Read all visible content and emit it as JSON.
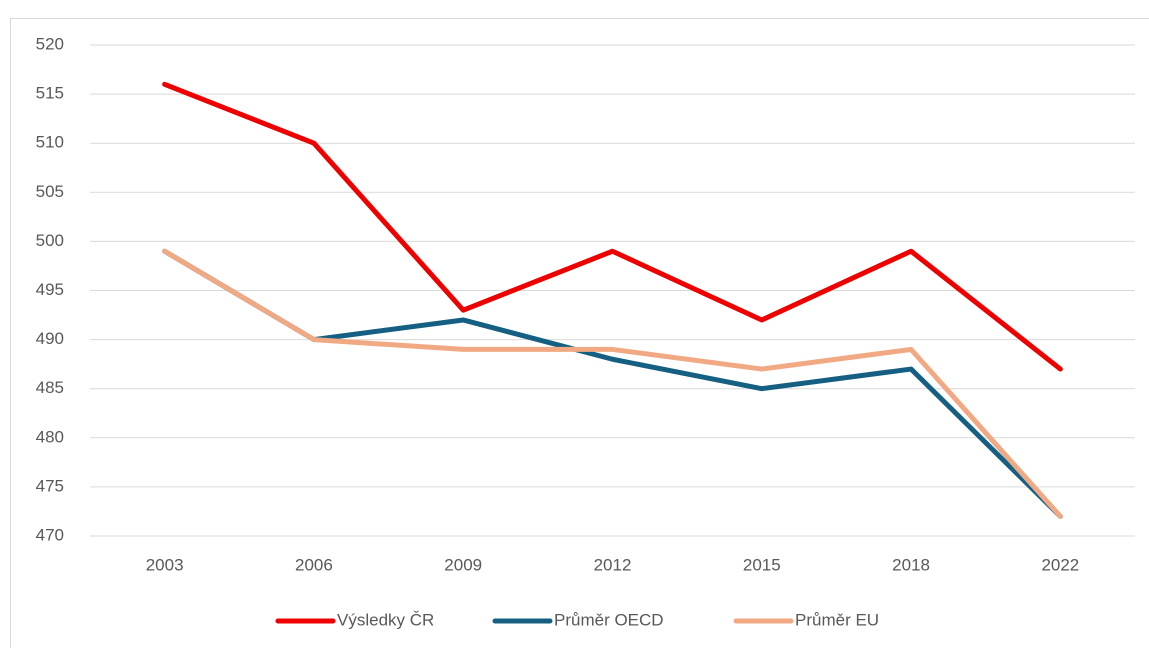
{
  "chart_data": {
    "type": "line",
    "categories": [
      "2003",
      "2006",
      "2009",
      "2012",
      "2015",
      "2018",
      "2022"
    ],
    "series": [
      {
        "name": "Výsledky ČR",
        "color": "#ee0000",
        "values": [
          516,
          510,
          493,
          499,
          492,
          499,
          487
        ]
      },
      {
        "name": "Průměr OECD",
        "color": "#156082",
        "values": [
          499,
          490,
          492,
          488,
          485,
          487,
          472
        ]
      },
      {
        "name": "Průměr EU",
        "color": "#f1a983",
        "values": [
          499,
          490,
          489,
          489,
          487,
          489,
          472
        ]
      }
    ],
    "ylim": [
      470,
      520
    ],
    "yticks": [
      470,
      475,
      480,
      485,
      490,
      495,
      500,
      505,
      510,
      515,
      520
    ],
    "grid": true,
    "legend": "bottom"
  }
}
